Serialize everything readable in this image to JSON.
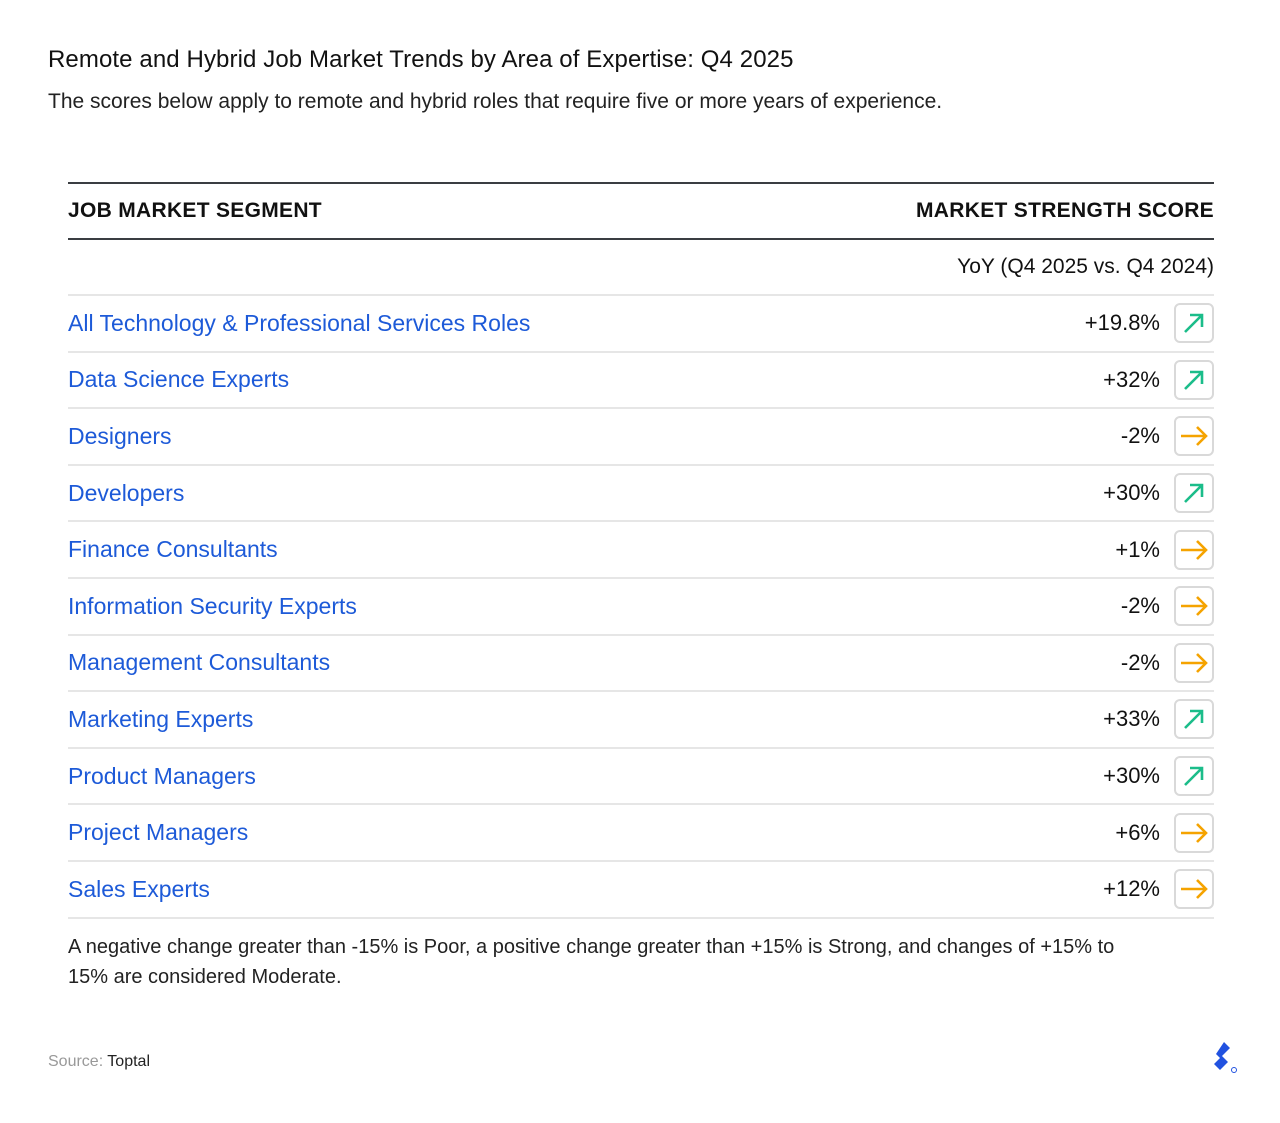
{
  "header": {
    "title": "Remote and Hybrid Job Market Trends by Area of Expertise: Q4 2025",
    "subtitle": "The scores below apply to remote and hybrid roles that require five or more years of experience."
  },
  "table": {
    "col1": "JOB MARKET SEGMENT",
    "col2": "MARKET STRENGTH SCORE",
    "subheader": "YoY (Q4 2025 vs. Q4 2024)",
    "rows": [
      {
        "segment": "All Technology & Professional Services Roles",
        "value": "+19.8%",
        "trend": "up"
      },
      {
        "segment": "Data Science Experts",
        "value": "+32%",
        "trend": "up"
      },
      {
        "segment": "Designers",
        "value": "-2%",
        "trend": "flat"
      },
      {
        "segment": "Developers",
        "value": "+30%",
        "trend": "up"
      },
      {
        "segment": "Finance Consultants",
        "value": "+1%",
        "trend": "flat"
      },
      {
        "segment": "Information Security Experts",
        "value": "-2%",
        "trend": "flat"
      },
      {
        "segment": "Management Consultants",
        "value": "-2%",
        "trend": "flat"
      },
      {
        "segment": "Marketing Experts",
        "value": "+33%",
        "trend": "up"
      },
      {
        "segment": "Product Managers",
        "value": "+30%",
        "trend": "up"
      },
      {
        "segment": "Project Managers",
        "value": "+6%",
        "trend": "flat"
      },
      {
        "segment": "Sales Experts",
        "value": "+12%",
        "trend": "flat"
      }
    ]
  },
  "note": "A negative change greater than -15% is Poor, a positive change greater than +15% is Strong, and changes of +15% to 15% are considered Moderate.",
  "source": {
    "label": "Source:",
    "name": "Toptal"
  },
  "colors": {
    "link": "#1d5ad8",
    "up": "#1bbd8a",
    "flat": "#f5a300"
  },
  "chart_data": {
    "type": "table",
    "title": "Remote and Hybrid Job Market Trends by Area of Expertise: Q4 2025",
    "subtitle": "The scores below apply to remote and hybrid roles that require five or more years of experience.",
    "columns": [
      "Job Market Segment",
      "Market Strength Score YoY (Q4 2025 vs. Q4 2024)"
    ],
    "categories": [
      "All Technology & Professional Services Roles",
      "Data Science Experts",
      "Designers",
      "Developers",
      "Finance Consultants",
      "Information Security Experts",
      "Management Consultants",
      "Marketing Experts",
      "Product Managers",
      "Project Managers",
      "Sales Experts"
    ],
    "values": [
      19.8,
      32,
      -2,
      30,
      1,
      -2,
      -2,
      33,
      30,
      6,
      12
    ],
    "trend": [
      "Strong",
      "Strong",
      "Moderate",
      "Strong",
      "Moderate",
      "Moderate",
      "Moderate",
      "Strong",
      "Strong",
      "Moderate",
      "Moderate"
    ]
  }
}
